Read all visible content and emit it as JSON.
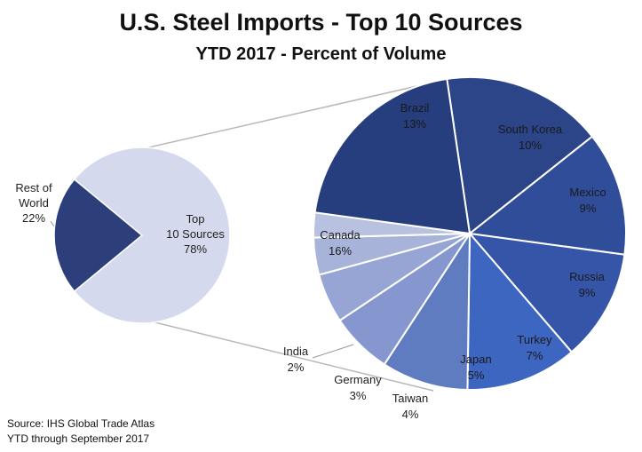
{
  "chart_data": {
    "type": "pie",
    "title": "U.S. Steel Imports - Top 10 Sources",
    "subtitle": "YTD 2017 - Percent of Volume",
    "overview": [
      {
        "label": "Rest of World",
        "value": 22,
        "text": "22%"
      },
      {
        "label": "Top 10 Sources",
        "value": 78,
        "text": "78%"
      }
    ],
    "breakdown": [
      {
        "label": "Brazil",
        "value": 13,
        "text": "13%"
      },
      {
        "label": "South Korea",
        "value": 10,
        "text": "10%"
      },
      {
        "label": "Mexico",
        "value": 9,
        "text": "9%"
      },
      {
        "label": "Russia",
        "value": 9,
        "text": "9%"
      },
      {
        "label": "Turkey",
        "value": 7,
        "text": "7%"
      },
      {
        "label": "Japan",
        "value": 5,
        "text": "5%"
      },
      {
        "label": "Taiwan",
        "value": 4,
        "text": "4%"
      },
      {
        "label": "Germany",
        "value": 3,
        "text": "3%"
      },
      {
        "label": "India",
        "value": 2,
        "text": "2%"
      },
      {
        "label": "Canada",
        "value": 16,
        "text": "16%"
      }
    ]
  },
  "colors": {
    "Rest of World": "#2c3f7a",
    "Top 10 Sources": "#d4d9ed",
    "Brazil": "#2c4488",
    "South Korea": "#304d99",
    "Mexico": "#3556a8",
    "Russia": "#3d66c0",
    "Turkey": "#5f7cc0",
    "Japan": "#8697cf",
    "Taiwan": "#97a5d4",
    "Germany": "#a8b3da",
    "India": "#b9c1e1",
    "Canada": "#263d7e"
  },
  "source": {
    "line1": "Source: IHS Global Trade Atlas",
    "line2": "YTD through September 2017"
  }
}
